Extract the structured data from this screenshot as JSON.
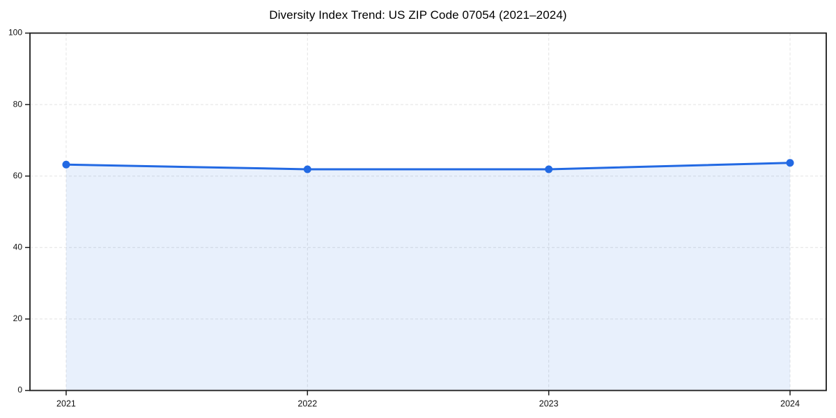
{
  "chart_data": {
    "type": "area",
    "title": "Diversity Index Trend: US ZIP Code 07054 (2021–2024)",
    "x": [
      2021,
      2022,
      2023,
      2024
    ],
    "xticks": [
      "2021",
      "2022",
      "2023",
      "2024"
    ],
    "series": [
      {
        "name": "Diversity Index",
        "values": [
          63.2,
          61.9,
          61.9,
          63.7
        ]
      }
    ],
    "xlabel": "",
    "ylabel": "",
    "ylim": [
      0,
      100
    ],
    "yticks": [
      0,
      20,
      40,
      60,
      80,
      100
    ],
    "grid": true,
    "grid_style": "dashed",
    "legend": "none",
    "colors": {
      "line": "#2269e3",
      "marker": "#2269e3",
      "fill_rgba": "rgba(34,105,227,0.10)",
      "grid": "#e2e2e2",
      "spine": "#1a1a1a",
      "tick_label": "#111111",
      "title": "#000000",
      "background": "#ffffff"
    }
  }
}
